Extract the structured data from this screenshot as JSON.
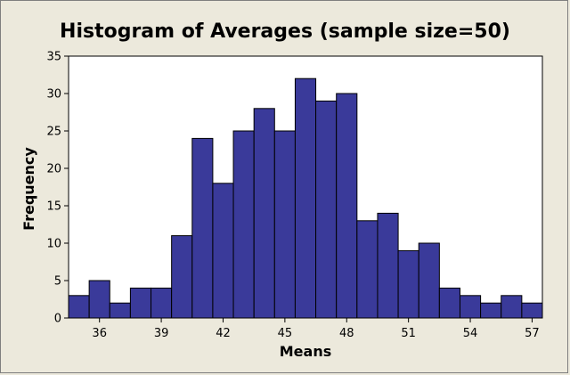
{
  "chart_data": {
    "type": "bar",
    "title": "Histogram of Averages (sample size=50)",
    "xlabel": "Means",
    "ylabel": "Frequency",
    "bin_width": 1,
    "bins": [
      {
        "x": 35,
        "count": 3
      },
      {
        "x": 36,
        "count": 5
      },
      {
        "x": 37,
        "count": 2
      },
      {
        "x": 38,
        "count": 4
      },
      {
        "x": 39,
        "count": 4
      },
      {
        "x": 40,
        "count": 11
      },
      {
        "x": 41,
        "count": 24
      },
      {
        "x": 42,
        "count": 18
      },
      {
        "x": 43,
        "count": 25
      },
      {
        "x": 44,
        "count": 28
      },
      {
        "x": 45,
        "count": 25
      },
      {
        "x": 46,
        "count": 32
      },
      {
        "x": 47,
        "count": 29
      },
      {
        "x": 48,
        "count": 30
      },
      {
        "x": 49,
        "count": 13
      },
      {
        "x": 50,
        "count": 14
      },
      {
        "x": 51,
        "count": 9
      },
      {
        "x": 52,
        "count": 10
      },
      {
        "x": 53,
        "count": 4
      },
      {
        "x": 54,
        "count": 3
      },
      {
        "x": 55,
        "count": 2
      },
      {
        "x": 56,
        "count": 3
      },
      {
        "x": 57,
        "count": 2
      }
    ],
    "x_ticks": [
      36,
      39,
      42,
      45,
      48,
      51,
      54,
      57
    ],
    "y_ticks": [
      0,
      5,
      10,
      15,
      20,
      25,
      30,
      35
    ],
    "xlim": [
      34.5,
      57.5
    ],
    "ylim": [
      0,
      35
    ],
    "grid": false,
    "colors": {
      "bar_fill": "#3a3a9a",
      "bar_stroke": "#000000",
      "plot_bg": "#ffffff",
      "outer_bg": "#ece9dc"
    }
  }
}
